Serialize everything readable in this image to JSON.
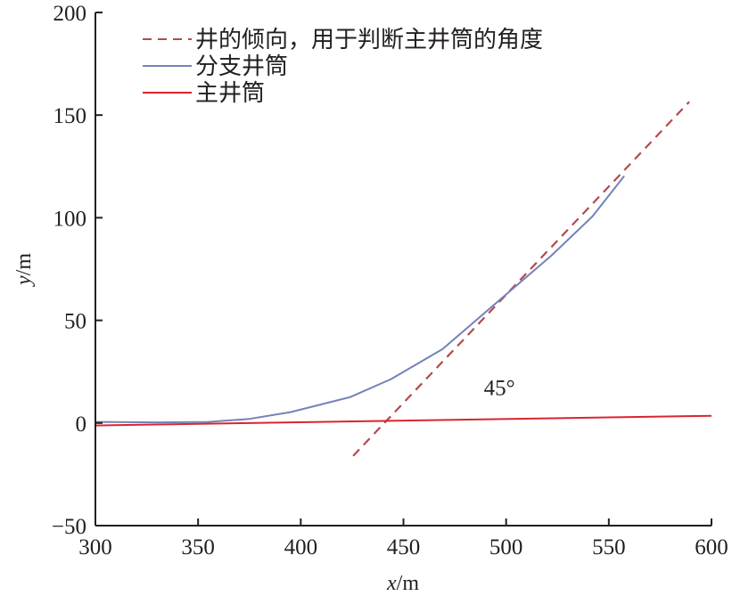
{
  "chart_data": {
    "type": "line",
    "title": "",
    "xlabel_var": "x",
    "xlabel_unit": "/m",
    "ylabel_var": "y",
    "ylabel_unit": "/m",
    "xlim": [
      300,
      600
    ],
    "ylim": [
      -50,
      200
    ],
    "xticks": [
      300,
      350,
      400,
      450,
      500,
      550,
      600
    ],
    "yticks": [
      -50,
      0,
      50,
      100,
      150,
      200
    ],
    "xtick_labels": [
      "300",
      "350",
      "400",
      "450",
      "500",
      "550",
      "600"
    ],
    "ytick_labels": [
      "−50",
      "0",
      "50",
      "100",
      "150",
      "200"
    ],
    "grid": false,
    "legend_position": "top-left",
    "annotation": "45°",
    "annotation_pos": [
      490,
      18
    ],
    "series": [
      {
        "name": "井的倾向，用于判断主井筒的角度",
        "color": "#b5494f",
        "dash": true,
        "x": [
          425.5,
          589.2
        ],
        "y": [
          -16,
          156.5
        ]
      },
      {
        "name": "分支井筒",
        "color": "#7482b8",
        "dash": false,
        "x": [
          300,
          330,
          355,
          375,
          395,
          424,
          444,
          469,
          493,
          522,
          542,
          557.5
        ],
        "y": [
          0.5,
          0.3,
          0.5,
          2,
          5.3,
          12.6,
          21.4,
          36,
          56.6,
          81.5,
          100.6,
          120.3
        ]
      },
      {
        "name": "主井筒",
        "color": "#d9252f",
        "dash": false,
        "x": [
          300,
          600
        ],
        "y": [
          -1.2,
          3.5
        ]
      }
    ]
  }
}
